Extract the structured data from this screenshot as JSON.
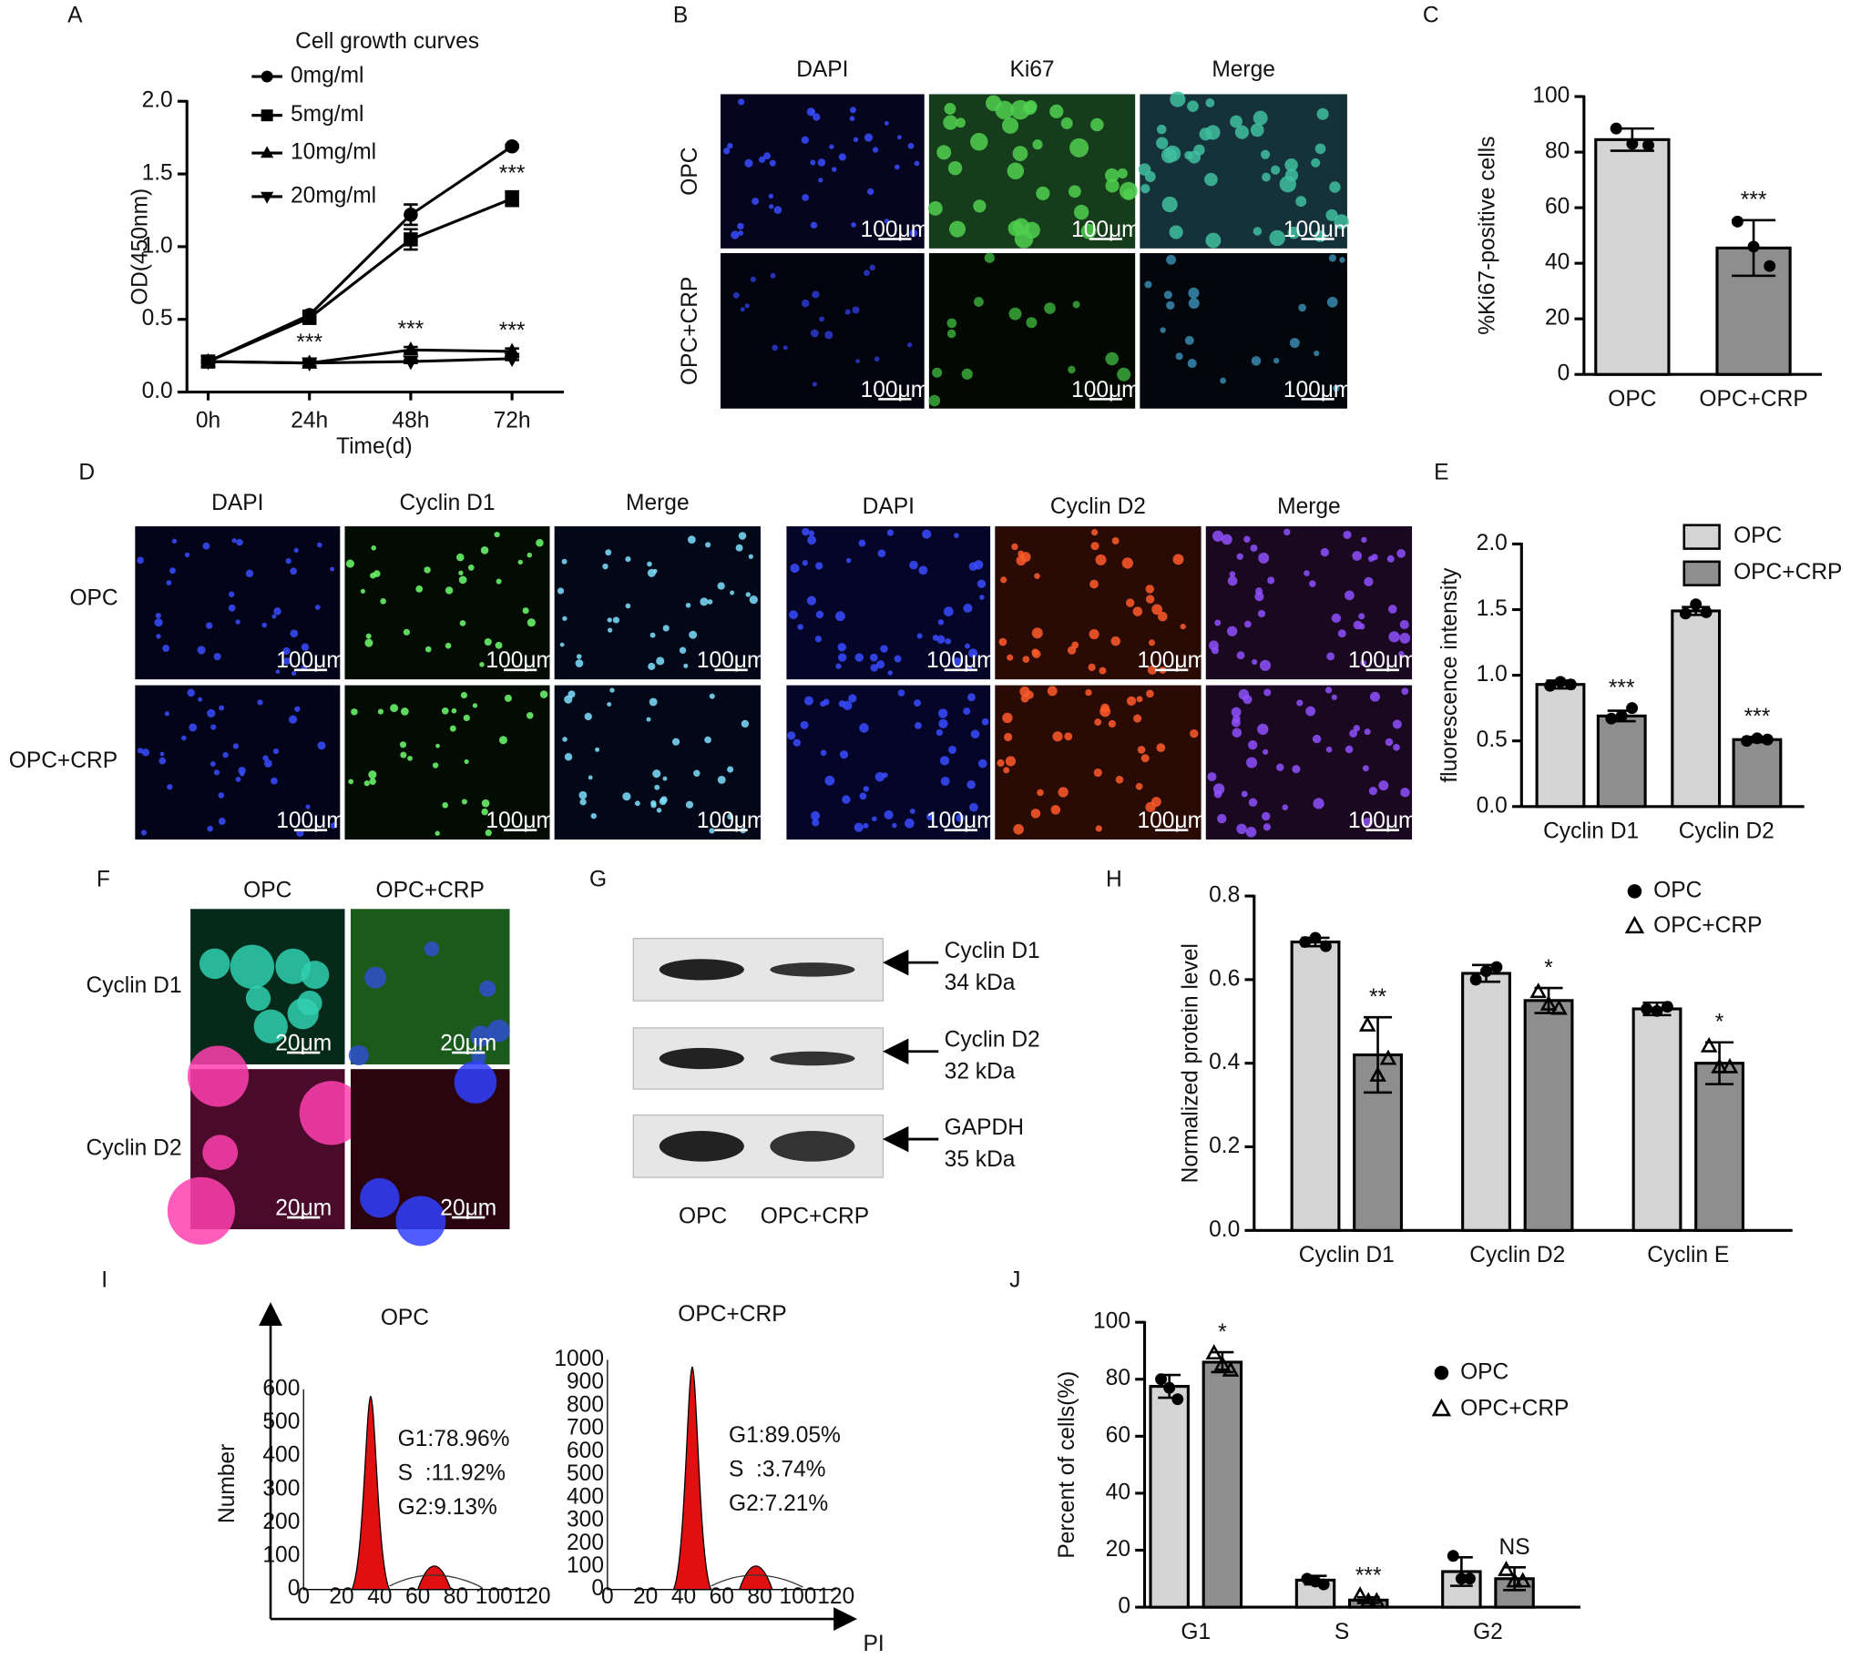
{
  "panel_labels": [
    "A",
    "B",
    "C",
    "D",
    "E",
    "F",
    "G",
    "H",
    "I",
    "J"
  ],
  "chart_data": [
    {
      "type": "line",
      "title": "Cell growth curves",
      "x_label": "Time(d)",
      "y_label": "OD(450nm)",
      "categories": [
        "0h",
        "24h",
        "48h",
        "72h"
      ],
      "ylim": [
        0,
        2.0
      ],
      "yticks": [
        {
          "value": 0,
          "label": "0.0"
        },
        0.5,
        {
          "value": 1,
          "label": "1.0"
        },
        1.5,
        {
          "value": 2,
          "label": "2.0"
        }
      ],
      "series": [
        {
          "name": "0mg/ml",
          "color": "#000000",
          "marker": "circle",
          "values": [
            0.21,
            0.53,
            1.22,
            1.69
          ],
          "errors": [
            0.01,
            0.03,
            0.07,
            0.01
          ],
          "marks": [
            null,
            null,
            null,
            null
          ]
        },
        {
          "name": "5mg/ml",
          "color": "#000000",
          "marker": "square",
          "values": [
            0.21,
            0.51,
            1.05,
            1.33
          ],
          "errors": [
            0.01,
            0.03,
            0.07,
            0.05
          ],
          "marks": [
            null,
            null,
            null,
            "***"
          ]
        },
        {
          "name": "10mg/ml",
          "color": "#000000",
          "marker": "triangle-up",
          "values": [
            0.21,
            0.2,
            0.29,
            0.28
          ],
          "errors": [
            0.01,
            0.02,
            0.02,
            0.02
          ],
          "marks": [
            null,
            "***",
            "***",
            "***"
          ]
        },
        {
          "name": "20mg/ml",
          "color": "#000000",
          "marker": "triangle-down",
          "values": [
            0.21,
            0.2,
            0.21,
            0.23
          ],
          "errors": [
            0.01,
            0.02,
            0.01,
            0.01
          ],
          "marks": [
            null,
            null,
            null,
            null
          ]
        }
      ]
    },
    {
      "type": "bar",
      "y_label": "%Ki67-positive cells",
      "categories": [
        "OPC",
        "OPC+CRP"
      ],
      "ylim": [
        0,
        100
      ],
      "yticks": [
        0,
        20,
        40,
        60,
        80,
        100
      ],
      "values": [
        84.5,
        45.5
      ],
      "errors": [
        4,
        10
      ],
      "colors": [
        "#d4d4d4",
        "#8e8e8e"
      ],
      "points": [
        [
          88.5,
          83,
          82.5
        ],
        [
          55,
          46,
          39
        ]
      ],
      "marks": [
        null,
        "***"
      ]
    },
    {
      "type": "bar",
      "y_label": "fluorescence  intensity",
      "categories": [
        "Cyclin D1",
        "Cyclin D2"
      ],
      "ylim": [
        0,
        2.0
      ],
      "yticks": [
        {
          "value": 0,
          "label": "0.0"
        },
        0.5,
        {
          "value": 1,
          "label": "1.0"
        },
        1.5,
        {
          "value": 2,
          "label": "2.0"
        }
      ],
      "series": [
        {
          "name": "OPC",
          "color": "#d4d4d4",
          "values": [
            0.93,
            1.49
          ],
          "errors": [
            0.03,
            0.03
          ],
          "points": [
            [
              0.92,
              0.95,
              0.93
            ],
            [
              1.47,
              1.54,
              1.48
            ]
          ],
          "marks": [
            null,
            null
          ]
        },
        {
          "name": "OPC+CRP",
          "color": "#8e8e8e",
          "values": [
            0.69,
            0.51
          ],
          "errors": [
            0.04,
            0.02
          ],
          "points": [
            [
              0.67,
              0.69,
              0.75
            ],
            [
              0.5,
              0.52,
              0.51
            ]
          ],
          "marks": [
            "***",
            "***"
          ]
        }
      ]
    },
    {
      "type": "bar",
      "y_label": "Normalized protein level",
      "categories": [
        "Cyclin D1",
        "Cyclin D2",
        "Cyclin E"
      ],
      "ylim": [
        0,
        0.8
      ],
      "yticks": [
        {
          "value": 0,
          "label": "0.0"
        },
        0.2,
        0.4,
        0.6,
        0.8
      ],
      "series": [
        {
          "name": "OPC",
          "color": "#d4d4d4",
          "marker": "circle",
          "values": [
            0.69,
            0.615,
            0.53
          ],
          "errors": [
            0.01,
            0.02,
            0.015
          ],
          "points": [
            [
              0.69,
              0.7,
              0.68
            ],
            [
              0.6,
              0.62,
              0.63
            ],
            [
              0.53,
              0.525,
              0.535
            ]
          ],
          "marks": [
            null,
            null,
            null
          ]
        },
        {
          "name": "OPC+CRP",
          "color": "#8e8e8e",
          "marker": "open-triangle",
          "values": [
            0.42,
            0.55,
            0.4
          ],
          "errors": [
            0.09,
            0.03,
            0.05
          ],
          "points": [
            [
              0.49,
              0.37,
              0.41
            ],
            [
              0.57,
              0.54,
              0.53
            ],
            [
              0.44,
              0.39,
              0.39
            ]
          ],
          "marks": [
            "**",
            "*",
            "*"
          ]
        }
      ]
    },
    {
      "type": "bar",
      "y_label": "Percent of cells(%)",
      "categories": [
        "G1",
        "S",
        "G2"
      ],
      "ylim": [
        0,
        100
      ],
      "yticks": [
        0,
        20,
        40,
        60,
        80,
        100
      ],
      "series": [
        {
          "name": "OPC",
          "color": "#d4d4d4",
          "marker": "circle",
          "values": [
            77.5,
            9.5,
            12.5
          ],
          "errors": [
            4,
            1.5,
            5
          ],
          "points": [
            [
              80,
              77,
              73
            ],
            [
              10,
              9,
              8
            ],
            [
              18,
              10,
              10
            ]
          ],
          "marks": [
            null,
            null,
            null
          ]
        },
        {
          "name": "OPC+CRP",
          "color": "#8e8e8e",
          "marker": "open-triangle",
          "values": [
            86,
            2.5,
            10
          ],
          "errors": [
            3.5,
            1,
            4
          ],
          "points": [
            [
              89,
              85,
              83
            ],
            [
              4,
              2,
              2
            ],
            [
              13,
              9,
              9
            ]
          ],
          "marks": [
            "*",
            "***",
            "NS"
          ]
        }
      ]
    }
  ],
  "images": {
    "B": {
      "columns": [
        "DAPI",
        "Ki67",
        "Merge"
      ],
      "rows": [
        "OPC",
        "OPC+CRP"
      ],
      "scale_bar": "100μm"
    },
    "D": {
      "rows": [
        "OPC",
        "OPC+CRP"
      ],
      "left_columns": [
        "DAPI",
        "Cyclin D1",
        "Merge"
      ],
      "right_columns": [
        "DAPI",
        "Cyclin D2",
        "Merge"
      ],
      "scale_bar": "100μm"
    },
    "F": {
      "columns": [
        "OPC",
        "OPC+CRP"
      ],
      "rows": [
        "Cyclin D1",
        "Cyclin D2"
      ],
      "scale_bar": "20μm"
    },
    "G": {
      "bands": [
        {
          "protein": "Cyclin D1",
          "size": "34 kDa"
        },
        {
          "protein": "Cyclin D2",
          "size": "32 kDa"
        },
        {
          "protein": "GAPDH",
          "size": "35 kDa"
        }
      ],
      "lanes": [
        "OPC",
        "OPC+CRP"
      ]
    },
    "I": {
      "y_label": "Number",
      "x_label": "PI",
      "panels": [
        {
          "title": "OPC",
          "stats": [
            "G1:78.96%",
            "S  :11.92%",
            "G2:9.13%"
          ],
          "xticks": [
            0,
            20,
            40,
            60,
            80,
            100,
            120
          ],
          "yticks": [
            0,
            100,
            200,
            300,
            400,
            500,
            600
          ]
        },
        {
          "title": "OPC+CRP",
          "stats": [
            "G1:89.05%",
            "S  :3.74%",
            "G2:7.21%"
          ],
          "xticks": [
            0,
            20,
            40,
            60,
            80,
            100,
            120
          ],
          "yticks": [
            0,
            100,
            200,
            300,
            400,
            500,
            600,
            700,
            800,
            900,
            1000
          ]
        }
      ]
    }
  }
}
